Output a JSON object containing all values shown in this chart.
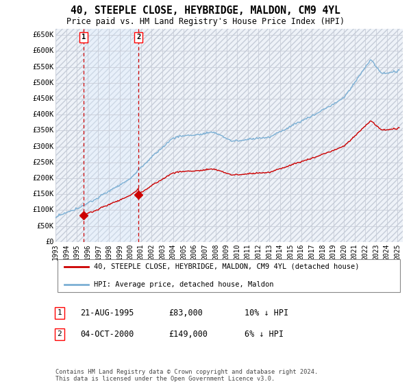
{
  "title": "40, STEEPLE CLOSE, HEYBRIDGE, MALDON, CM9 4YL",
  "subtitle": "Price paid vs. HM Land Registry's House Price Index (HPI)",
  "ylabel_ticks": [
    "£0",
    "£50K",
    "£100K",
    "£150K",
    "£200K",
    "£250K",
    "£300K",
    "£350K",
    "£400K",
    "£450K",
    "£500K",
    "£550K",
    "£600K",
    "£650K"
  ],
  "ytick_values": [
    0,
    50000,
    100000,
    150000,
    200000,
    250000,
    300000,
    350000,
    400000,
    450000,
    500000,
    550000,
    600000,
    650000
  ],
  "ylim": [
    0,
    670000
  ],
  "hpi_color": "#7bafd4",
  "price_color": "#cc0000",
  "dashed_line_color": "#cc0000",
  "fill_color": "#ddeeff",
  "background_color": "#eef2f8",
  "grid_color": "#c8cdd8",
  "sale1_date": "21-AUG-1995",
  "sale1_year": 1995.64,
  "sale1_price": 83000,
  "sale1_hpi_diff": "10% ↓ HPI",
  "sale2_date": "04-OCT-2000",
  "sale2_year": 2000.76,
  "sale2_price": 149000,
  "sale2_hpi_diff": "6% ↓ HPI",
  "legend_label1": "40, STEEPLE CLOSE, HEYBRIDGE, MALDON, CM9 4YL (detached house)",
  "legend_label2": "HPI: Average price, detached house, Maldon",
  "footer": "Contains HM Land Registry data © Crown copyright and database right 2024.\nThis data is licensed under the Open Government Licence v3.0.",
  "xmin": 1993,
  "xmax": 2025.5
}
